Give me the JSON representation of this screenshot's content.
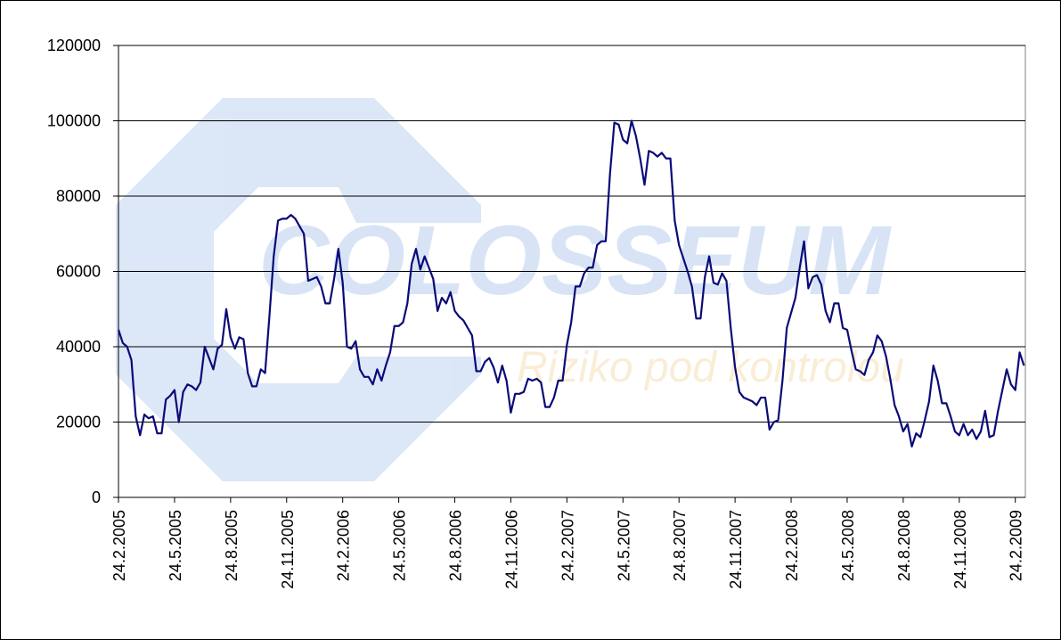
{
  "chart_data": {
    "type": "line",
    "watermark": {
      "title": "COLOSSEUM",
      "subtitle": "Riziko pod kontrolou"
    },
    "categories": [
      "24.2.2005",
      null,
      null,
      null,
      null,
      null,
      null,
      null,
      null,
      null,
      null,
      null,
      null,
      "24.5.2005",
      null,
      null,
      null,
      null,
      null,
      null,
      null,
      null,
      null,
      null,
      null,
      null,
      "24.8.2005",
      null,
      null,
      null,
      null,
      null,
      null,
      null,
      null,
      null,
      null,
      null,
      null,
      "24.11.2005",
      null,
      null,
      null,
      null,
      null,
      null,
      null,
      null,
      null,
      null,
      null,
      null,
      "24.2.2006",
      null,
      null,
      null,
      null,
      null,
      null,
      null,
      null,
      null,
      null,
      null,
      null,
      "24.5.2006",
      null,
      null,
      null,
      null,
      null,
      null,
      null,
      null,
      null,
      null,
      null,
      null,
      "24.8.2006",
      null,
      null,
      null,
      null,
      null,
      null,
      null,
      null,
      null,
      null,
      null,
      null,
      "24.11.2006",
      null,
      null,
      null,
      null,
      null,
      null,
      null,
      null,
      null,
      null,
      null,
      null,
      "24.2.2007",
      null,
      null,
      null,
      null,
      null,
      null,
      null,
      null,
      null,
      null,
      null,
      null,
      "24.5.2007",
      null,
      null,
      null,
      null,
      null,
      null,
      null,
      null,
      null,
      null,
      null,
      null,
      "24.8.2007",
      null,
      null,
      null,
      null,
      null,
      null,
      null,
      null,
      null,
      null,
      null,
      null,
      "24.11.2007",
      null,
      null,
      null,
      null,
      null,
      null,
      null,
      null,
      null,
      null,
      null,
      null,
      "24.2.2008",
      null,
      null,
      null,
      null,
      null,
      null,
      null,
      null,
      null,
      null,
      null,
      null,
      "24.5.2008",
      null,
      null,
      null,
      null,
      null,
      null,
      null,
      null,
      null,
      null,
      null,
      null,
      "24.8.2008",
      null,
      null,
      null,
      null,
      null,
      null,
      null,
      null,
      null,
      null,
      null,
      null,
      "24.11.2008",
      null,
      null,
      null,
      null,
      null,
      null,
      null,
      null,
      null,
      null,
      null,
      null,
      "24.2.2009",
      null,
      null
    ],
    "series": [
      {
        "color": "#0a0a78",
        "values": [
          44500,
          41000,
          40000,
          36500,
          21500,
          16500,
          22000,
          21000,
          21500,
          17000,
          17000,
          26000,
          27000,
          28500,
          20000,
          28000,
          30000,
          29500,
          28500,
          30500,
          40000,
          37000,
          34000,
          39500,
          40500,
          50000,
          42500,
          39500,
          42500,
          42000,
          33000,
          29500,
          29500,
          34000,
          33000,
          48000,
          64000,
          73500,
          74000,
          74000,
          75000,
          74000,
          72000,
          70000,
          57500,
          58000,
          58500,
          56000,
          51500,
          51500,
          58000,
          66000,
          57000,
          40000,
          39500,
          41500,
          34000,
          32000,
          32000,
          30000,
          34000,
          31000,
          35000,
          38500,
          45500,
          45500,
          46500,
          51500,
          62000,
          66000,
          60500,
          64000,
          61000,
          58000,
          49500,
          53000,
          51500,
          54500,
          49500,
          48000,
          47000,
          45000,
          43000,
          33500,
          33500,
          36000,
          37000,
          34500,
          30500,
          35000,
          31000,
          22500,
          27500,
          27500,
          28000,
          31500,
          31000,
          31500,
          30500,
          24000,
          24000,
          26500,
          31000,
          31000,
          40500,
          46500,
          56000,
          56000,
          59500,
          61000,
          61000,
          67000,
          68000,
          68000,
          86000,
          99500,
          99000,
          95000,
          94000,
          100000,
          96000,
          90000,
          83000,
          92000,
          91500,
          90500,
          91500,
          90000,
          90000,
          73500,
          67000,
          63500,
          60000,
          56000,
          47500,
          47500,
          58500,
          64000,
          57000,
          56500,
          59500,
          57500,
          45000,
          34500,
          28000,
          26500,
          26000,
          25500,
          24500,
          26500,
          26500,
          18000,
          20000,
          20500,
          31000,
          45000,
          49000,
          53000,
          61000,
          68000,
          55500,
          58500,
          59000,
          56500,
          49500,
          46500,
          51500,
          51500,
          45000,
          44500,
          39000,
          34000,
          33500,
          32500,
          36500,
          38500,
          43000,
          41500,
          37500,
          31500,
          24500,
          21500,
          17500,
          19500,
          13500,
          17000,
          16000,
          20500,
          25500,
          35000,
          31000,
          25000,
          25000,
          21500,
          17500,
          16500,
          19500,
          16500,
          18000,
          15500,
          17500,
          23000,
          16000,
          16500,
          23000,
          28500,
          34000,
          30000,
          28500,
          38500,
          35000
        ]
      }
    ],
    "ylim": [
      0,
      120000
    ],
    "yticks": [
      0,
      20000,
      40000,
      60000,
      80000,
      100000,
      120000
    ],
    "grid": true
  }
}
